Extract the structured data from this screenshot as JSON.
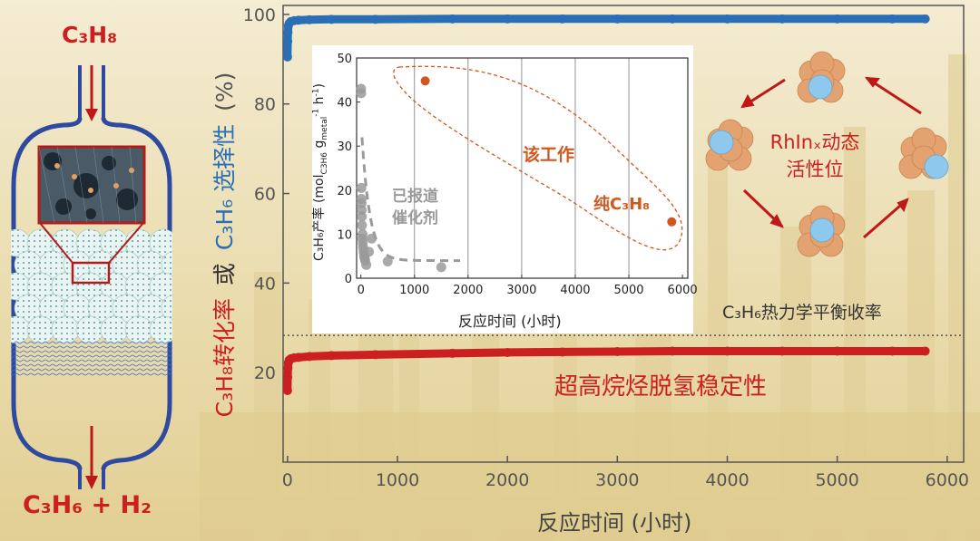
{
  "colors": {
    "selectivity": "#2a6fb5",
    "conversion": "#cc1f1f",
    "work": "#d2571d",
    "reported": "#9a9a9a",
    "axis": "#555555",
    "vessel": "#2d4aa0",
    "rh": "#e3a270",
    "in": "#8ec8ec",
    "arrow": "#c01818"
  },
  "reactor": {
    "feed": "C₃H₈",
    "product": "C₃H₆ + H₂"
  },
  "chart_data": [
    {
      "type": "scatter",
      "xlabel": "反应时间 (小时)",
      "ylabel": "C₃H₈转化率 或 C₃H₆ 选择性 (%)",
      "ylabel_parts": [
        "C₃H₈转化率",
        "或",
        "C₃H₆ 选择性",
        "(%)"
      ],
      "xlim": [
        -40,
        6150
      ],
      "ylim": [
        0,
        102
      ],
      "xticks": [
        0,
        1000,
        2000,
        3000,
        4000,
        5000,
        6000
      ],
      "yticks": [
        20,
        40,
        60,
        80,
        100
      ],
      "series": [
        {
          "role": "selectivity",
          "color": "#2a6fb5",
          "x": [
            0,
            2,
            4,
            8,
            15,
            30,
            60,
            100,
            200,
            400,
            800,
            1500,
            2000,
            2500,
            3000,
            3500,
            4000,
            4500,
            5000,
            5500,
            5800
          ],
          "y": [
            90.5,
            94,
            96,
            97.5,
            98,
            98.4,
            98.6,
            98.7,
            98.8,
            98.9,
            98.9,
            99,
            99,
            99,
            99,
            99,
            99,
            99,
            99,
            99,
            99
          ]
        },
        {
          "role": "conversion",
          "color": "#cc1f1f",
          "x": [
            0,
            2,
            4,
            8,
            15,
            30,
            60,
            100,
            200,
            400,
            800,
            1500,
            2000,
            2500,
            3000,
            3500,
            4000,
            4500,
            5000,
            5500,
            5800
          ],
          "y": [
            16,
            19,
            21,
            22.2,
            22.8,
            23.1,
            23.3,
            23.4,
            23.6,
            23.8,
            24,
            24.3,
            24.5,
            24.6,
            24.7,
            24.8,
            24.8,
            24.8,
            24.8,
            24.8,
            24.8
          ]
        }
      ],
      "reference_line": {
        "y": 28.3,
        "label": "C₃H₆热力学平衡收率"
      },
      "annotation": "超高烷烃脱氢稳定性"
    },
    {
      "type": "scatter",
      "xlabel": "反应时间 (小时)",
      "ylabel": "C₃H₆产率 (mol_C3H6 g_metal⁻¹ h⁻¹)",
      "ylabel_parts": [
        "C₃H₆产率 (mol",
        "C3H6",
        " g",
        "metal",
        "-1",
        " h",
        "-1",
        ")"
      ],
      "xlim": [
        -80,
        6100
      ],
      "ylim": [
        0,
        50
      ],
      "xticks": [
        0,
        1000,
        2000,
        3000,
        4000,
        5000,
        6000
      ],
      "yticks": [
        0,
        10,
        20,
        30,
        40,
        50
      ],
      "grid": "vertical",
      "series": [
        {
          "role": "reported",
          "color": "#9a9a9a",
          "x": [
            3,
            5,
            8,
            10,
            12,
            15,
            18,
            20,
            25,
            30,
            35,
            40,
            50,
            60,
            70,
            80,
            100,
            150,
            200,
            500,
            1500
          ],
          "y": [
            43,
            42,
            20.5,
            18,
            17,
            15.5,
            14,
            12,
            9,
            10,
            8,
            7,
            6,
            5,
            4.5,
            4,
            3,
            6,
            9,
            3.8,
            2.5
          ]
        },
        {
          "role": "work",
          "color": "#d2571d",
          "x": [
            1200,
            5800
          ],
          "y": [
            44.8,
            12.8
          ]
        }
      ],
      "fit_curve": {
        "color": "#9a9a9a",
        "style": "dashed",
        "formula": "y = 32 * exp(-x/150) + 4"
      },
      "labels": {
        "reported": "已报道\n催化剂",
        "work": "该工作",
        "pure_feed": "纯C₃H₈"
      }
    }
  ],
  "mechanism": {
    "label": "RhInₓ动态\n活性位"
  }
}
